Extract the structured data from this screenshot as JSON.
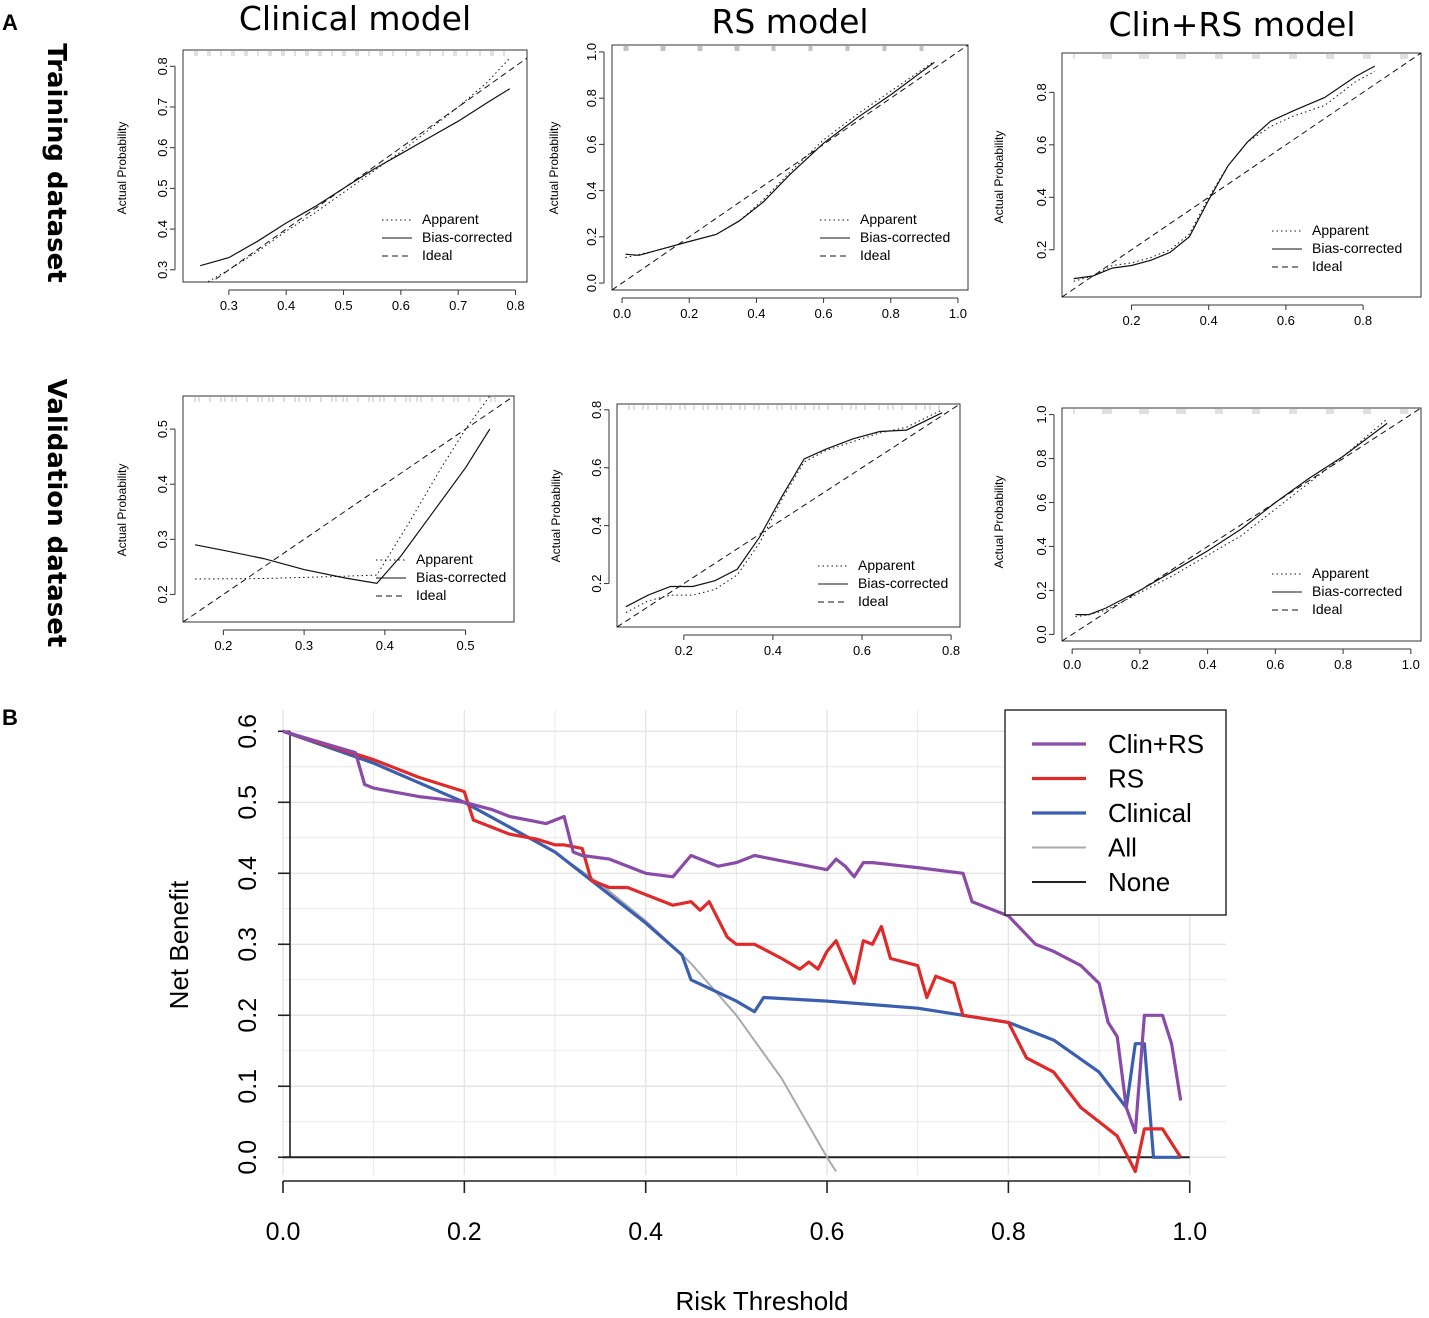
{
  "figure": {
    "panel_labels": [
      "A",
      "B"
    ],
    "column_titles": [
      "Clinical model",
      "RS model",
      "Clin+RS model"
    ],
    "row_titles": [
      "Training dataset",
      "Validation dataset"
    ]
  },
  "chart_data": [
    {
      "type": "line",
      "id": "cal-clinical-training",
      "title": "Clinical model",
      "row": "Training dataset",
      "ylabel": "Actual Probability",
      "xlabel": "",
      "xlim": [
        0.22,
        0.82
      ],
      "ylim": [
        0.27,
        0.84
      ],
      "xticks": [
        "0.3",
        "0.4",
        "0.5",
        "0.6",
        "0.7",
        "0.8"
      ],
      "yticks": [
        "0.3",
        "0.4",
        "0.5",
        "0.6",
        "0.7",
        "0.8"
      ],
      "legend": [
        "Apparent",
        "Bias-corrected",
        "Ideal"
      ],
      "series": [
        {
          "name": "Apparent",
          "style": "dotted",
          "x": [
            0.25,
            0.3,
            0.35,
            0.4,
            0.45,
            0.5,
            0.55,
            0.6,
            0.65,
            0.7,
            0.75,
            0.79
          ],
          "y": [
            0.26,
            0.3,
            0.345,
            0.395,
            0.44,
            0.49,
            0.54,
            0.59,
            0.645,
            0.7,
            0.76,
            0.82
          ]
        },
        {
          "name": "Bias-corrected",
          "style": "solid",
          "x": [
            0.25,
            0.3,
            0.35,
            0.4,
            0.45,
            0.5,
            0.55,
            0.6,
            0.65,
            0.7,
            0.75,
            0.79
          ],
          "y": [
            0.31,
            0.33,
            0.37,
            0.415,
            0.455,
            0.5,
            0.545,
            0.585,
            0.625,
            0.665,
            0.71,
            0.745
          ]
        },
        {
          "name": "Ideal",
          "style": "dashed",
          "x": [
            0.22,
            0.82
          ],
          "y": [
            0.22,
            0.82
          ]
        }
      ]
    },
    {
      "type": "line",
      "id": "cal-rs-training",
      "title": "RS model",
      "row": "Training dataset",
      "ylabel": "Actual Probability",
      "xlabel": "",
      "xlim": [
        -0.03,
        1.03
      ],
      "ylim": [
        -0.03,
        1.03
      ],
      "xticks": [
        "0.0",
        "0.2",
        "0.4",
        "0.6",
        "0.8",
        "1.0"
      ],
      "yticks": [
        "0.0",
        "0.2",
        "0.4",
        "0.6",
        "0.8",
        "1.0"
      ],
      "legend": [
        "Apparent",
        "Bias-corrected",
        "Ideal"
      ],
      "series": [
        {
          "name": "Apparent",
          "style": "dotted",
          "x": [
            0.01,
            0.1,
            0.2,
            0.28,
            0.35,
            0.42,
            0.5,
            0.6,
            0.7,
            0.8,
            0.93
          ],
          "y": [
            0.11,
            0.14,
            0.18,
            0.21,
            0.27,
            0.36,
            0.48,
            0.62,
            0.73,
            0.83,
            0.96
          ]
        },
        {
          "name": "Bias-corrected",
          "style": "solid",
          "x": [
            0.01,
            0.05,
            0.1,
            0.2,
            0.28,
            0.35,
            0.42,
            0.5,
            0.6,
            0.7,
            0.8,
            0.93
          ],
          "y": [
            0.125,
            0.12,
            0.14,
            0.18,
            0.21,
            0.27,
            0.35,
            0.47,
            0.605,
            0.715,
            0.815,
            0.955
          ]
        },
        {
          "name": "Ideal",
          "style": "dashed",
          "x": [
            -0.03,
            1.03
          ],
          "y": [
            -0.03,
            1.03
          ]
        }
      ]
    },
    {
      "type": "line",
      "id": "cal-clinrs-training",
      "title": "Clin+RS model",
      "row": "Training dataset",
      "ylabel": "Actual Probability",
      "xlabel": "",
      "xlim": [
        0.02,
        0.95
      ],
      "ylim": [
        0.02,
        0.95
      ],
      "xticks": [
        "0.2",
        "0.4",
        "0.6",
        "0.8"
      ],
      "yticks": [
        "0.2",
        "0.4",
        "0.6",
        "0.8"
      ],
      "legend": [
        "Apparent",
        "Bias-corrected",
        "Ideal"
      ],
      "series": [
        {
          "name": "Apparent",
          "style": "dotted",
          "x": [
            0.05,
            0.1,
            0.15,
            0.2,
            0.25,
            0.3,
            0.35,
            0.4,
            0.45,
            0.5,
            0.56,
            0.62,
            0.7,
            0.78,
            0.83
          ],
          "y": [
            0.08,
            0.1,
            0.14,
            0.15,
            0.17,
            0.2,
            0.26,
            0.4,
            0.52,
            0.61,
            0.67,
            0.71,
            0.75,
            0.84,
            0.88
          ]
        },
        {
          "name": "Bias-corrected",
          "style": "solid",
          "x": [
            0.05,
            0.1,
            0.15,
            0.2,
            0.25,
            0.3,
            0.35,
            0.4,
            0.45,
            0.5,
            0.56,
            0.62,
            0.7,
            0.78,
            0.83
          ],
          "y": [
            0.09,
            0.1,
            0.13,
            0.14,
            0.16,
            0.19,
            0.25,
            0.39,
            0.52,
            0.61,
            0.69,
            0.73,
            0.78,
            0.86,
            0.9
          ]
        },
        {
          "name": "Ideal",
          "style": "dashed",
          "x": [
            0.02,
            0.95
          ],
          "y": [
            0.02,
            0.95
          ]
        }
      ]
    },
    {
      "type": "line",
      "id": "cal-clinical-validation",
      "title": "Clinical model",
      "row": "Validation dataset",
      "ylabel": "Actual Probability",
      "xlabel": "",
      "xlim": [
        0.15,
        0.56
      ],
      "ylim": [
        0.15,
        0.56
      ],
      "xticks": [
        "0.2",
        "0.3",
        "0.4",
        "0.5"
      ],
      "yticks": [
        "0.2",
        "0.3",
        "0.4",
        "0.5"
      ],
      "legend": [
        "Apparent",
        "Bias-corrected",
        "Ideal"
      ],
      "series": [
        {
          "name": "Apparent",
          "style": "dotted",
          "x": [
            0.165,
            0.25,
            0.3,
            0.35,
            0.39,
            0.43,
            0.47,
            0.5,
            0.53
          ],
          "y": [
            0.228,
            0.229,
            0.231,
            0.233,
            0.235,
            0.33,
            0.43,
            0.5,
            0.56
          ]
        },
        {
          "name": "Bias-corrected",
          "style": "solid",
          "x": [
            0.165,
            0.2,
            0.25,
            0.3,
            0.35,
            0.39,
            0.42,
            0.46,
            0.5,
            0.53
          ],
          "y": [
            0.29,
            0.28,
            0.265,
            0.245,
            0.23,
            0.22,
            0.27,
            0.35,
            0.43,
            0.5
          ]
        },
        {
          "name": "Ideal",
          "style": "dashed",
          "x": [
            0.15,
            0.56
          ],
          "y": [
            0.15,
            0.56
          ]
        }
      ]
    },
    {
      "type": "line",
      "id": "cal-rs-validation",
      "title": "RS model",
      "row": "Validation dataset",
      "ylabel": "Actual Probability",
      "xlabel": "",
      "xlim": [
        0.05,
        0.82
      ],
      "ylim": [
        0.05,
        0.82
      ],
      "xticks": [
        "0.2",
        "0.4",
        "0.6",
        "0.8"
      ],
      "yticks": [
        "0.2",
        "0.4",
        "0.6",
        "0.8"
      ],
      "legend": [
        "Apparent",
        "Bias-corrected",
        "Ideal"
      ],
      "series": [
        {
          "name": "Apparent",
          "style": "dotted",
          "x": [
            0.07,
            0.12,
            0.17,
            0.22,
            0.27,
            0.32,
            0.37,
            0.42,
            0.47,
            0.52,
            0.58,
            0.64,
            0.7,
            0.78
          ],
          "y": [
            0.1,
            0.14,
            0.16,
            0.16,
            0.18,
            0.23,
            0.34,
            0.49,
            0.62,
            0.66,
            0.69,
            0.72,
            0.74,
            0.8
          ]
        },
        {
          "name": "Bias-corrected",
          "style": "solid",
          "x": [
            0.07,
            0.12,
            0.17,
            0.22,
            0.27,
            0.32,
            0.37,
            0.42,
            0.47,
            0.52,
            0.58,
            0.64,
            0.7,
            0.78
          ],
          "y": [
            0.12,
            0.16,
            0.19,
            0.19,
            0.21,
            0.25,
            0.36,
            0.5,
            0.63,
            0.665,
            0.7,
            0.725,
            0.73,
            0.79
          ]
        },
        {
          "name": "Ideal",
          "style": "dashed",
          "x": [
            0.05,
            0.82
          ],
          "y": [
            0.05,
            0.82
          ]
        }
      ]
    },
    {
      "type": "line",
      "id": "cal-clinrs-validation",
      "title": "Clin+RS model",
      "row": "Validation dataset",
      "ylabel": "Actual Probability",
      "xlabel": "",
      "xlim": [
        -0.03,
        1.03
      ],
      "ylim": [
        -0.03,
        1.03
      ],
      "xticks": [
        "0.0",
        "0.2",
        "0.4",
        "0.6",
        "0.8",
        "1.0"
      ],
      "yticks": [
        "0.0",
        "0.2",
        "0.4",
        "0.6",
        "0.8",
        "1.0"
      ],
      "legend": [
        "Apparent",
        "Bias-corrected",
        "Ideal"
      ],
      "series": [
        {
          "name": "Apparent",
          "style": "dotted",
          "x": [
            0.01,
            0.05,
            0.1,
            0.2,
            0.3,
            0.4,
            0.5,
            0.6,
            0.7,
            0.8,
            0.93
          ],
          "y": [
            0.08,
            0.09,
            0.11,
            0.19,
            0.27,
            0.36,
            0.45,
            0.57,
            0.69,
            0.81,
            0.98
          ]
        },
        {
          "name": "Bias-corrected",
          "style": "solid",
          "x": [
            0.01,
            0.05,
            0.1,
            0.2,
            0.3,
            0.4,
            0.5,
            0.6,
            0.7,
            0.8,
            0.93
          ],
          "y": [
            0.09,
            0.09,
            0.12,
            0.2,
            0.29,
            0.38,
            0.48,
            0.6,
            0.71,
            0.81,
            0.96
          ]
        },
        {
          "name": "Ideal",
          "style": "dashed",
          "x": [
            -0.03,
            1.03
          ],
          "y": [
            -0.03,
            1.03
          ]
        }
      ]
    },
    {
      "type": "line",
      "id": "decision-curve",
      "title": "",
      "xlabel": "Risk Threshold",
      "ylabel": "Net Benefit",
      "xlim": [
        0,
        1.04
      ],
      "ylim": [
        -0.025,
        0.63
      ],
      "xticks": [
        "0.0",
        "0.2",
        "0.4",
        "0.6",
        "0.8",
        "1.0"
      ],
      "yticks": [
        "0.0",
        "0.1",
        "0.2",
        "0.3",
        "0.4",
        "0.5",
        "0.6"
      ],
      "grid": true,
      "legend_position": "top-right",
      "series": [
        {
          "name": "Clin+RS",
          "color": "#8a4aa8",
          "x": [
            0.0,
            0.08,
            0.09,
            0.1,
            0.12,
            0.15,
            0.17,
            0.2,
            0.23,
            0.25,
            0.27,
            0.29,
            0.31,
            0.32,
            0.33,
            0.36,
            0.4,
            0.43,
            0.45,
            0.48,
            0.5,
            0.52,
            0.6,
            0.61,
            0.62,
            0.63,
            0.64,
            0.65,
            0.7,
            0.75,
            0.76,
            0.8,
            0.83,
            0.85,
            0.88,
            0.9,
            0.91,
            0.92,
            0.93,
            0.94,
            0.95,
            0.97,
            0.98,
            0.99
          ],
          "y": [
            0.6,
            0.57,
            0.525,
            0.52,
            0.515,
            0.508,
            0.505,
            0.5,
            0.49,
            0.48,
            0.475,
            0.47,
            0.48,
            0.43,
            0.425,
            0.42,
            0.4,
            0.395,
            0.425,
            0.41,
            0.415,
            0.425,
            0.405,
            0.42,
            0.41,
            0.395,
            0.415,
            0.415,
            0.408,
            0.4,
            0.36,
            0.34,
            0.3,
            0.29,
            0.27,
            0.245,
            0.19,
            0.17,
            0.07,
            0.035,
            0.2,
            0.2,
            0.16,
            0.08
          ]
        },
        {
          "name": "RS",
          "color": "#e02a2a",
          "x": [
            0.0,
            0.1,
            0.15,
            0.2,
            0.21,
            0.25,
            0.28,
            0.3,
            0.31,
            0.33,
            0.34,
            0.36,
            0.38,
            0.4,
            0.43,
            0.45,
            0.46,
            0.47,
            0.49,
            0.5,
            0.52,
            0.55,
            0.57,
            0.58,
            0.59,
            0.6,
            0.61,
            0.63,
            0.64,
            0.65,
            0.66,
            0.67,
            0.7,
            0.71,
            0.72,
            0.74,
            0.75,
            0.8,
            0.82,
            0.85,
            0.88,
            0.9,
            0.92,
            0.94,
            0.95,
            0.97,
            0.99
          ],
          "y": [
            0.6,
            0.56,
            0.535,
            0.515,
            0.475,
            0.455,
            0.448,
            0.44,
            0.44,
            0.435,
            0.39,
            0.38,
            0.38,
            0.37,
            0.355,
            0.36,
            0.348,
            0.36,
            0.31,
            0.3,
            0.3,
            0.28,
            0.265,
            0.275,
            0.265,
            0.29,
            0.305,
            0.245,
            0.305,
            0.3,
            0.325,
            0.28,
            0.27,
            0.225,
            0.255,
            0.245,
            0.2,
            0.19,
            0.14,
            0.12,
            0.07,
            0.05,
            0.03,
            -0.02,
            0.04,
            0.04,
            0.0
          ]
        },
        {
          "name": "Clinical",
          "color": "#3b5fb0",
          "x": [
            0.0,
            0.1,
            0.2,
            0.3,
            0.4,
            0.44,
            0.45,
            0.5,
            0.52,
            0.53,
            0.6,
            0.7,
            0.8,
            0.85,
            0.9,
            0.93,
            0.94,
            0.95,
            0.96,
            0.97,
            0.99
          ],
          "y": [
            0.6,
            0.555,
            0.5,
            0.43,
            0.33,
            0.285,
            0.25,
            0.22,
            0.205,
            0.225,
            0.22,
            0.21,
            0.19,
            0.165,
            0.12,
            0.07,
            0.16,
            0.16,
            0.0,
            0.0,
            0.0
          ]
        },
        {
          "name": "All",
          "color": "#aaaaaa",
          "x": [
            0.0,
            0.1,
            0.2,
            0.3,
            0.35,
            0.4,
            0.45,
            0.5,
            0.55,
            0.6,
            0.61
          ],
          "y": [
            0.6,
            0.556,
            0.5,
            0.429,
            0.385,
            0.333,
            0.273,
            0.2,
            0.111,
            0.0,
            -0.02
          ]
        },
        {
          "name": "None",
          "color": "#222222",
          "x": [
            0.0,
            1.0
          ],
          "y": [
            0.0,
            0.0
          ]
        }
      ]
    }
  ]
}
